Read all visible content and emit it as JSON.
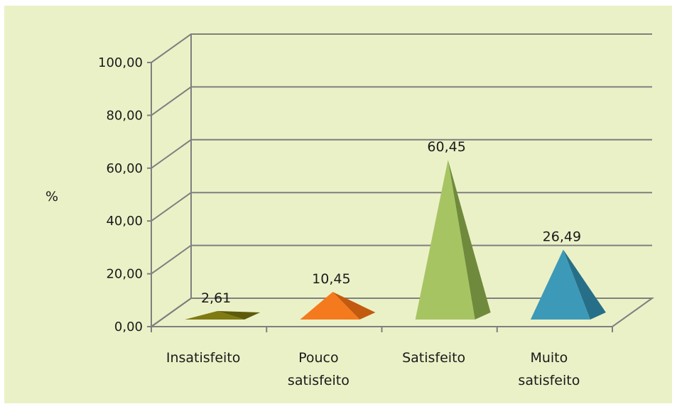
{
  "chart_data": {
    "type": "bar",
    "bar_shape": "pyramid-3d",
    "categories": [
      [
        "Insatisfeito"
      ],
      [
        "Pouco",
        "satisfeito"
      ],
      [
        "Satisfeito"
      ],
      [
        "Muito",
        "satisfeito"
      ]
    ],
    "values": [
      2.61,
      10.45,
      60.45,
      26.49
    ],
    "value_labels": [
      "2,61",
      "10,45",
      "60,45",
      "26,49"
    ],
    "ylabel": "%",
    "ylim": [
      0,
      100
    ],
    "yticks": [
      0,
      20,
      40,
      60,
      80,
      100
    ],
    "ytick_labels": [
      "0,00",
      "20,00",
      "40,00",
      "60,00",
      "80,00",
      "100,00"
    ],
    "grid": true,
    "legend": "none",
    "colors": {
      "background": "#ebf1c7",
      "gridline": "#7f7f7f",
      "bars": [
        {
          "front": "#7f7a12",
          "side": "#5e5a0c"
        },
        {
          "front": "#f47a1d",
          "side": "#c25a10"
        },
        {
          "front": "#a7c463",
          "side": "#6f8a3c"
        },
        {
          "front": "#3c9ab8",
          "side": "#276f88"
        }
      ]
    }
  }
}
